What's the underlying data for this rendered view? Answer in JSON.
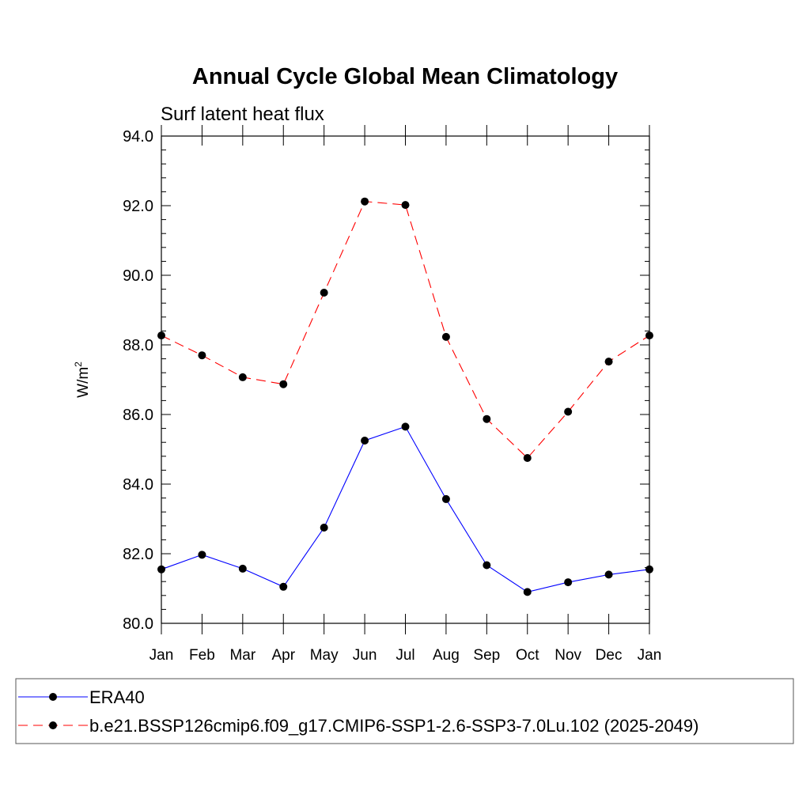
{
  "chart_data": {
    "type": "line",
    "title": "Annual Cycle Global Mean Climatology",
    "subtitle": "Surf latent heat flux",
    "xlabel": "",
    "ylabel": "W/m",
    "ylabel_superscript": "2",
    "categories": [
      "Jan",
      "Feb",
      "Mar",
      "Apr",
      "May",
      "Jun",
      "Jul",
      "Aug",
      "Sep",
      "Oct",
      "Nov",
      "Dec",
      "Jan"
    ],
    "ylim": [
      80.0,
      94.0
    ],
    "yticks": [
      "80.0",
      "82.0",
      "84.0",
      "86.0",
      "88.0",
      "90.0",
      "92.0",
      "94.0"
    ],
    "grid": false,
    "legend_position": "bottom",
    "series": [
      {
        "name": "ERA40",
        "color": "#0000ff",
        "dash": "solid",
        "values": [
          81.55,
          81.97,
          81.57,
          81.05,
          82.75,
          85.25,
          85.65,
          83.57,
          81.67,
          80.9,
          81.18,
          81.4,
          81.55
        ]
      },
      {
        "name": "b.e21.BSSP126cmip6.f09_g17.CMIP6-SSP1-2.6-SSP3-7.0Lu.102 (2025-2049)",
        "color": "#ff0000",
        "dash": "dashed",
        "values": [
          88.27,
          87.7,
          87.07,
          86.87,
          89.5,
          92.12,
          92.02,
          88.23,
          85.87,
          84.75,
          86.08,
          87.52,
          88.27
        ]
      }
    ]
  }
}
